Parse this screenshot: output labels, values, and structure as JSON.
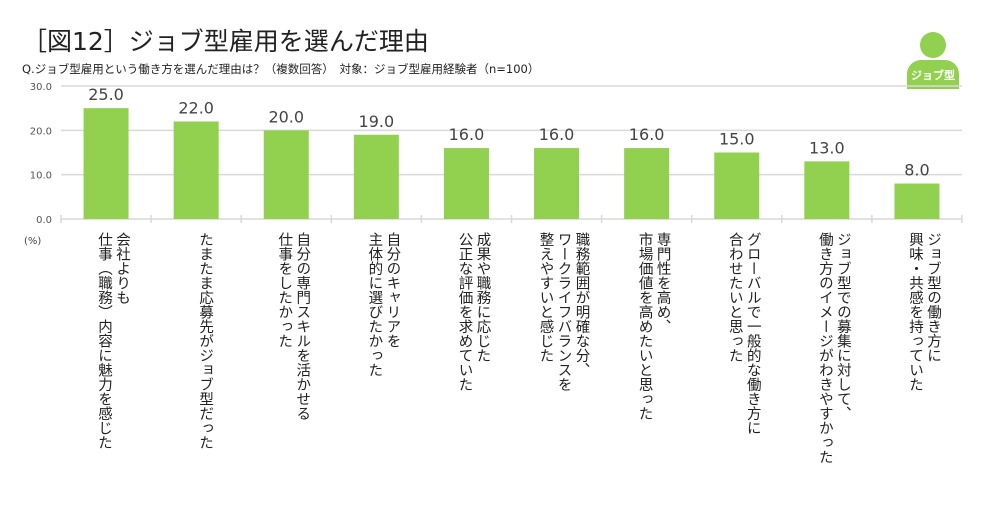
{
  "title": "［図12］ジョブ型雇用を選んだ理由",
  "subtitle": "Q.ジョブ型雇用という働き方を選んだ理由は？（複数回答）　対象：ジョブ型雇用経験者（n=100）",
  "badge": {
    "icon": "person-icon",
    "label": "ジョブ型"
  },
  "colors": {
    "bar": "#92d050",
    "grid": "#d9d9d9"
  },
  "chart_data": {
    "type": "bar",
    "title": "［図12］ジョブ型雇用を選んだ理由",
    "ylabel": "(%)",
    "ylim": [
      0,
      30
    ],
    "yticks": [
      "0.0",
      "10.0",
      "20.0",
      "30.0"
    ],
    "grid": true,
    "categories": [
      "会社よりも\n仕事（職務）内容に魅力を感じた",
      "たまたま応募先がジョブ型だった",
      "自分の専門スキルを活かせる\n仕事をしたかった",
      "自分のキャリアを\n主体的に選びたかった",
      "成果や職務に応じた\n公正な評価を求めていた",
      "職務範囲が明確な分、\nワークライフバランスを\n整えやすいと感じた",
      "専門性を高め、\n市場価値を高めたいと思った",
      "グローバルで一般的な働き方に\n合わせたいと思った",
      "ジョブ型での募集に対して、\n働き方のイメージがわきやすかった",
      "ジョブ型の働き方に\n興味・共感を持っていた"
    ],
    "values": [
      25.0,
      22.0,
      20.0,
      19.0,
      16.0,
      16.0,
      16.0,
      15.0,
      13.0,
      8.0
    ],
    "data_labels": [
      "25.0",
      "22.0",
      "20.0",
      "19.0",
      "16.0",
      "16.0",
      "16.0",
      "15.0",
      "13.0",
      "8.0"
    ]
  }
}
